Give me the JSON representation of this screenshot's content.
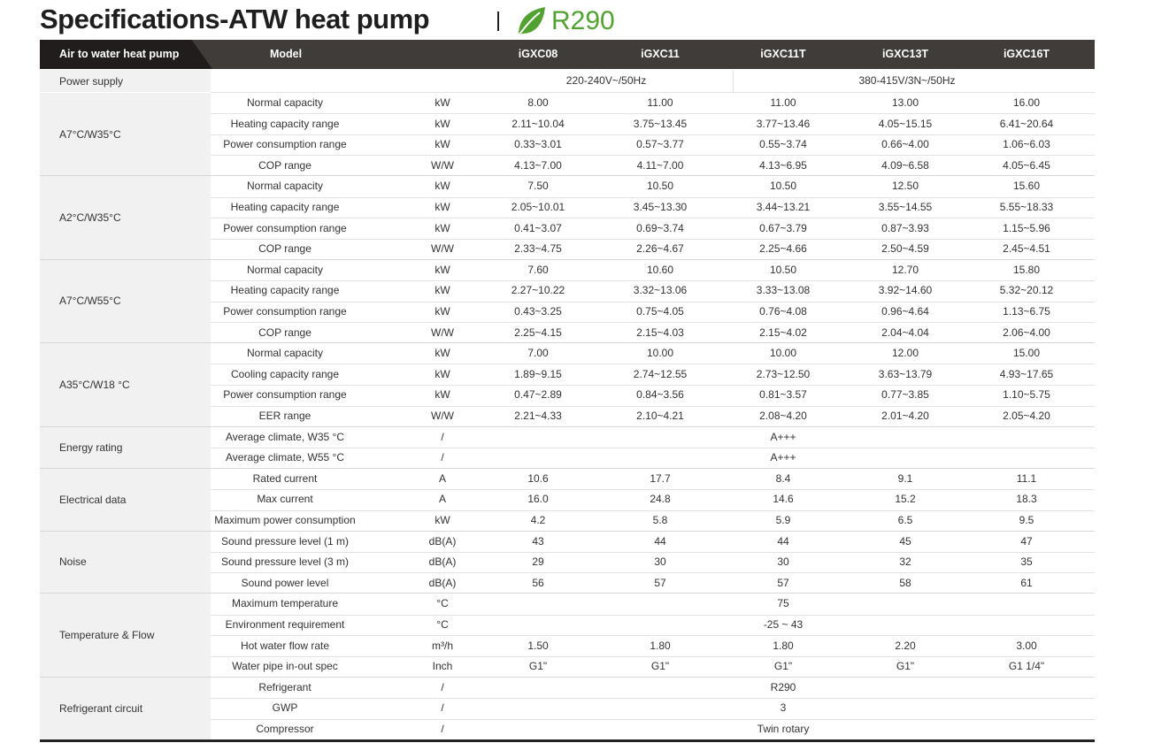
{
  "title": "Specifications-ATW heat pump",
  "badge": {
    "icon": "leaf-icon",
    "label": "R290",
    "color": "#52a232"
  },
  "header": {
    "first": "Air to water heat pump",
    "model": "Model",
    "models": [
      "iGXC08",
      "iGXC11",
      "iGXC11T",
      "iGXC13T",
      "iGXC16T"
    ]
  },
  "power_supply": {
    "label": "Power supply",
    "single_phase": "220-240V~/50Hz",
    "three_phase": "380-415V/3N~/50Hz"
  },
  "sections": [
    {
      "label": "A7°C/W35°C",
      "rows": [
        {
          "param": "Normal capacity",
          "unit": "kW",
          "values": [
            "8.00",
            "11.00",
            "11.00",
            "13.00",
            "16.00"
          ]
        },
        {
          "param": "Heating capacity range",
          "unit": "kW",
          "values": [
            "2.11~10.04",
            "3.75~13.45",
            "3.77~13.46",
            "4.05~15.15",
            "6.41~20.64"
          ]
        },
        {
          "param": "Power consumption range",
          "unit": "kW",
          "values": [
            "0.33~3.01",
            "0.57~3.77",
            "0.55~3.74",
            "0.66~4.00",
            "1.06~6.03"
          ]
        },
        {
          "param": "COP range",
          "unit": "W/W",
          "values": [
            "4.13~7.00",
            "4.11~7.00",
            "4.13~6.95",
            "4.09~6.58",
            "4.05~6.45"
          ]
        }
      ]
    },
    {
      "label": "A2°C/W35°C",
      "rows": [
        {
          "param": "Normal capacity",
          "unit": "kW",
          "values": [
            "7.50",
            "10.50",
            "10.50",
            "12.50",
            "15.60"
          ]
        },
        {
          "param": "Heating capacity range",
          "unit": "kW",
          "values": [
            "2.05~10.01",
            "3.45~13.30",
            "3.44~13.21",
            "3.55~14.55",
            "5.55~18.33"
          ]
        },
        {
          "param": "Power consumption range",
          "unit": "kW",
          "values": [
            "0.41~3.07",
            "0.69~3.74",
            "0.67~3.79",
            "0.87~3.93",
            "1.15~5.96"
          ]
        },
        {
          "param": "COP range",
          "unit": "W/W",
          "values": [
            "2.33~4.75",
            "2.26~4.67",
            "2.25~4.66",
            "2.50~4.59",
            "2.45~4.51"
          ]
        }
      ]
    },
    {
      "label": "A7°C/W55°C",
      "rows": [
        {
          "param": "Normal capacity",
          "unit": "kW",
          "values": [
            "7.60",
            "10.60",
            "10.50",
            "12.70",
            "15.80"
          ]
        },
        {
          "param": "Heating capacity range",
          "unit": "kW",
          "values": [
            "2.27~10.22",
            "3.32~13.06",
            "3.33~13.08",
            "3.92~14.60",
            "5.32~20.12"
          ]
        },
        {
          "param": "Power consumption range",
          "unit": "kW",
          "values": [
            "0.43~3.25",
            "0.75~4.05",
            "0.76~4.08",
            "0.96~4.64",
            "1.13~6.75"
          ]
        },
        {
          "param": "COP range",
          "unit": "W/W",
          "values": [
            "2.25~4.15",
            "2.15~4.03",
            "2.15~4.02",
            "2.04~4.04",
            "2.06~4.00"
          ]
        }
      ]
    },
    {
      "label": "A35°C/W18 °C",
      "rows": [
        {
          "param": "Normal capacity",
          "unit": "kW",
          "values": [
            "7.00",
            "10.00",
            "10.00",
            "12.00",
            "15.00"
          ]
        },
        {
          "param": "Cooling capacity range",
          "unit": "kW",
          "values": [
            "1.89~9.15",
            "2.74~12.55",
            "2.73~12.50",
            "3.63~13.79",
            "4.93~17.65"
          ]
        },
        {
          "param": "Power consumption range",
          "unit": "kW",
          "values": [
            "0.47~2.89",
            "0.84~3.56",
            "0.81~3.57",
            "0.77~3.85",
            "1.10~5.75"
          ]
        },
        {
          "param": "EER range",
          "unit": "W/W",
          "values": [
            "2.21~4.33",
            "2.10~4.21",
            "2.08~4.20",
            "2.01~4.20",
            "2.05~4.20"
          ]
        }
      ]
    },
    {
      "label": "Energy rating",
      "rows": [
        {
          "param": "Average climate, W35 °C",
          "unit": "/",
          "span": "A+++"
        },
        {
          "param": "Average climate, W55 °C",
          "unit": "/",
          "span": "A+++"
        }
      ]
    },
    {
      "label": "Electrical data",
      "rows": [
        {
          "param": "Rated current",
          "unit": "A",
          "values": [
            "10.6",
            "17.7",
            "8.4",
            "9.1",
            "11.1"
          ]
        },
        {
          "param": "Max current",
          "unit": "A",
          "values": [
            "16.0",
            "24.8",
            "14.6",
            "15.2",
            "18.3"
          ]
        },
        {
          "param": "Maximum power consumption",
          "unit": "kW",
          "values": [
            "4.2",
            "5.8",
            "5.9",
            "6.5",
            "9.5"
          ]
        }
      ]
    },
    {
      "label": "Noise",
      "rows": [
        {
          "param": "Sound pressure level (1 m)",
          "unit": "dB(A)",
          "values": [
            "43",
            "44",
            "44",
            "45",
            "47"
          ]
        },
        {
          "param": "Sound pressure level (3 m)",
          "unit": "dB(A)",
          "values": [
            "29",
            "30",
            "30",
            "32",
            "35"
          ]
        },
        {
          "param": "Sound power level",
          "unit": "dB(A)",
          "values": [
            "56",
            "57",
            "57",
            "58",
            "61"
          ]
        }
      ]
    },
    {
      "label": "Temperature & Flow",
      "rows": [
        {
          "param": "Maximum temperature",
          "unit": "°C",
          "span": "75"
        },
        {
          "param": "Environment  requirement",
          "unit": "°C",
          "span": "-25 ~ 43"
        },
        {
          "param": "Hot water flow rate",
          "unit": "m³/h",
          "values": [
            "1.50",
            "1.80",
            "1.80",
            "2.20",
            "3.00"
          ]
        },
        {
          "param": "Water pipe in-out spec",
          "unit": "Inch",
          "values": [
            "G1\"",
            "G1\"",
            "G1\"",
            "G1\"",
            "G1 1/4\""
          ]
        }
      ]
    },
    {
      "label": "Refrigerant circuit",
      "rows": [
        {
          "param": "Refrigerant",
          "unit": "/",
          "span": "R290"
        },
        {
          "param": "GWP",
          "unit": "/",
          "span": "3"
        },
        {
          "param": "Compressor",
          "unit": "/",
          "span": "Twin rotary"
        }
      ]
    }
  ]
}
